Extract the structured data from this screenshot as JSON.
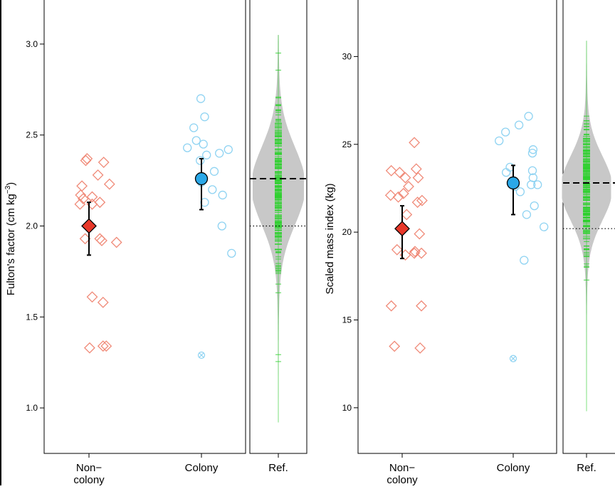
{
  "chart_data": [
    {
      "type": "scatter",
      "ylabel": "Fulton's factor (cm kg",
      "ylabel_superscript": "−3",
      "ylabel_close": ")",
      "ylim": [
        0.75,
        3.25
      ],
      "yticks": [
        1.0,
        1.5,
        2.0,
        2.5,
        3.0
      ],
      "categories": [
        "Non−\ncolony",
        "Colony",
        "Ref."
      ],
      "grid": false,
      "series": [
        {
          "category": "Non−\ncolony",
          "marker": "diamond",
          "color": "#f08a78",
          "x": [
            0.87,
            0.95,
            0.97,
            0.89,
            1.05,
            0.86,
            0.91,
            1.14,
            1.23,
            1.05,
            1.17,
            1.32,
            1.17,
            1.2,
            0.94,
            1.43,
            1.05,
            1.22,
            1.27,
            1.01,
            1.22
          ],
          "values": [
            2.17,
            2.36,
            2.37,
            2.22,
            2.16,
            2.12,
            2.15,
            2.28,
            2.35,
            2.12,
            2.13,
            2.23,
            1.93,
            1.92,
            1.93,
            1.91,
            1.61,
            1.58,
            1.34,
            1.33,
            1.34
          ]
        },
        {
          "category": "Colony",
          "marker": "circle",
          "color": "#8fd3f2",
          "x": [
            0.78,
            0.88,
            0.92,
            0.99,
            1.05,
            1.03,
            0.98,
            1.08,
            1.2,
            1.28,
            1.33,
            1.42,
            1.17,
            1.32,
            1.47,
            1.0,
            1.05
          ],
          "values": [
            2.43,
            2.54,
            2.47,
            2.7,
            2.6,
            2.45,
            2.36,
            2.39,
            2.3,
            2.4,
            2.17,
            2.42,
            2.2,
            2.0,
            1.85,
            2.24,
            2.13
          ]
        }
      ],
      "outliers": [
        {
          "category": "Colony",
          "value": 1.29,
          "marker": "circled-x",
          "color": "#8fd3f2"
        }
      ],
      "summary": [
        {
          "category": "Non−\ncolony",
          "mean": 2.0,
          "lower": 1.84,
          "upper": 2.13,
          "marker": "diamond",
          "color": "#e8382a"
        },
        {
          "category": "Colony",
          "mean": 2.26,
          "lower": 2.09,
          "upper": 2.37,
          "marker": "circle",
          "color": "#2aa8e8"
        }
      ],
      "reference": {
        "mean_line": 2.26,
        "dotted_line": 2.0,
        "density_mode": 2.22,
        "density_sd": 0.21,
        "range": [
          0.92,
          3.05
        ],
        "fill_color": "#c8c8c8",
        "tick_color": "#2ed02e"
      }
    },
    {
      "type": "scatter",
      "ylabel": "Scaled mass index (kg)",
      "ylim": [
        7.4,
        33.3
      ],
      "yticks": [
        10,
        15,
        20,
        25,
        30
      ],
      "categories": [
        "Non−\ncolony",
        "Colony",
        "Ref."
      ],
      "grid": false,
      "series": [
        {
          "category": "Non−\ncolony",
          "marker": "diamond",
          "color": "#f08a78",
          "x": [
            0.82,
            0.94,
            1.05,
            0.83,
            0.96,
            1.07,
            1.22,
            1.19,
            1.25,
            1.1,
            1.24,
            1.31,
            1.27,
            1.3,
            1.05,
            0.92,
            1.02,
            1.2,
            1.19,
            0.83,
            0.88,
            1.3,
            1.28
          ],
          "values": [
            22.1,
            22.0,
            23.1,
            23.5,
            23.4,
            21.0,
            23.6,
            25.1,
            23.1,
            22.6,
            21.7,
            21.8,
            19.9,
            18.8,
            18.7,
            19.0,
            22.2,
            18.9,
            18.8,
            15.8,
            13.5,
            15.8,
            13.4
          ]
        },
        {
          "category": "Colony",
          "marker": "circle",
          "color": "#8fd3f2",
          "x": [
            0.78,
            0.88,
            0.89,
            0.95,
            1.03,
            1.09,
            1.24,
            1.31,
            1.3,
            1.11,
            1.3,
            1.28,
            1.31,
            1.38,
            1.48,
            1.17,
            1.21,
            1.33
          ],
          "values": [
            25.2,
            25.7,
            23.4,
            23.7,
            22.6,
            26.1,
            26.6,
            24.7,
            24.5,
            22.3,
            23.5,
            22.7,
            23.1,
            22.7,
            20.3,
            18.4,
            21.0,
            21.5
          ]
        }
      ],
      "outliers": [
        {
          "category": "Colony",
          "value": 12.8,
          "marker": "circled-x",
          "color": "#8fd3f2"
        }
      ],
      "summary": [
        {
          "category": "Non−\ncolony",
          "mean": 20.2,
          "lower": 18.5,
          "upper": 21.5,
          "marker": "diamond",
          "color": "#e8382a"
        },
        {
          "category": "Colony",
          "mean": 22.8,
          "lower": 21.0,
          "upper": 23.8,
          "marker": "circle",
          "color": "#2aa8e8"
        }
      ],
      "reference": {
        "mean_line": 22.8,
        "dotted_line": 20.2,
        "density_mode": 22.5,
        "density_sd": 1.8,
        "range": [
          9.8,
          30.9
        ],
        "fill_color": "#c8c8c8",
        "tick_color": "#2ed02e"
      }
    }
  ]
}
